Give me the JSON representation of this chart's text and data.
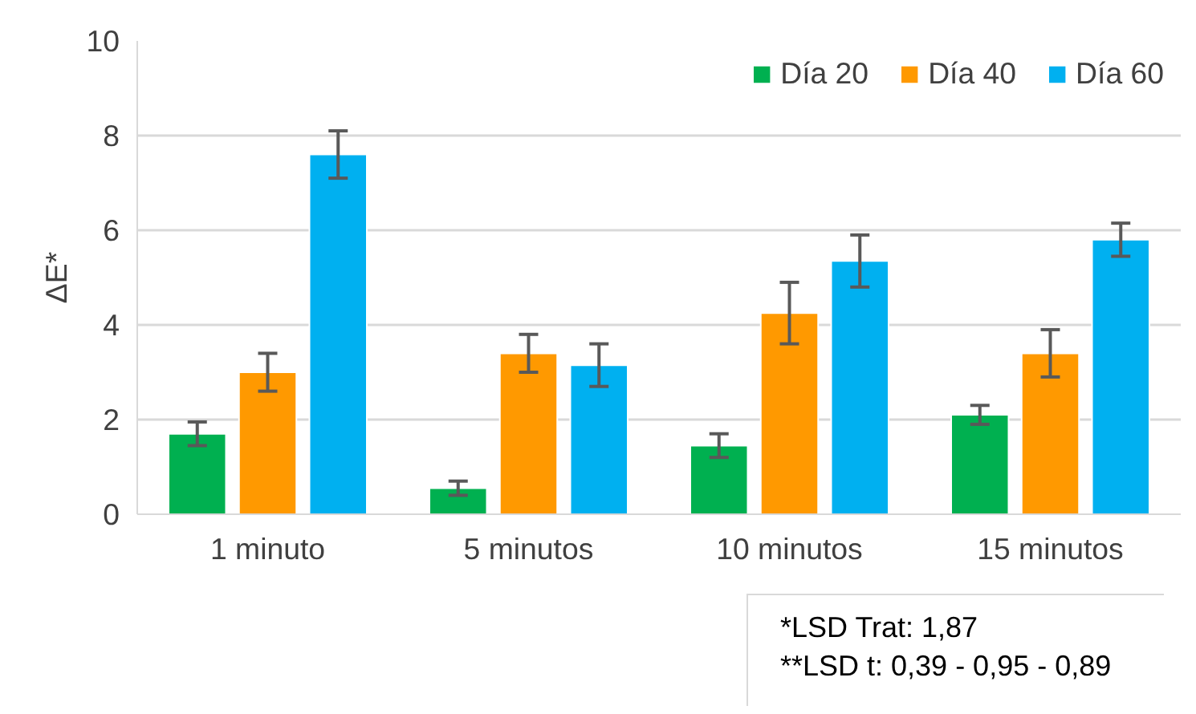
{
  "chart_data": {
    "type": "bar",
    "ylabel": "ΔE*",
    "categories": [
      "1 minuto",
      "5 minutos",
      "10 minutos",
      "15 minutos"
    ],
    "series": [
      {
        "name": "Día 20",
        "color": "#00b050",
        "values": [
          1.7,
          0.55,
          1.45,
          2.1
        ],
        "errors": [
          0.25,
          0.15,
          0.25,
          0.2
        ]
      },
      {
        "name": "Día 40",
        "color": "#ff9900",
        "values": [
          3.0,
          3.4,
          4.25,
          3.4
        ],
        "errors": [
          0.4,
          0.4,
          0.65,
          0.5
        ]
      },
      {
        "name": "Día 60",
        "color": "#00b0f0",
        "values": [
          7.6,
          3.15,
          5.35,
          5.8
        ],
        "errors": [
          0.5,
          0.45,
          0.55,
          0.35
        ]
      }
    ],
    "ylim": [
      0,
      10
    ],
    "yticks": [
      0,
      2,
      4,
      6,
      8,
      10
    ],
    "grid": "y",
    "legend": "top right",
    "annotations": [
      "*LSD Trat: 1,87",
      "**LSD t: 0,39 - 0,95 - 0,89"
    ]
  }
}
